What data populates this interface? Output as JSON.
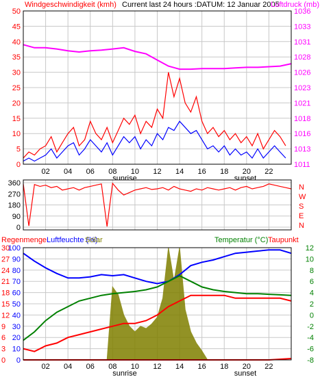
{
  "header": {
    "wind_label": "Windgeschwindigkeit (kmh)",
    "current_label": "Current last 24 hours :DATUM: 12 Januar 2005",
    "pressure_label": "Luftdruck (mb)"
  },
  "bottom_header": {
    "rain_label": "Regenmenge",
    "humidity_label": "Luftfeuchte (%)",
    "solar_label": "Solar",
    "temp_label": "Temperatur (°C)",
    "dew_label": "Taupunkt"
  },
  "x_ticks": [
    "02",
    "04",
    "06",
    "08",
    "10",
    "12",
    "14",
    "16",
    "18",
    "20",
    "22"
  ],
  "events": {
    "sunrise": "sunrise",
    "sunset": "sunset"
  },
  "colors": {
    "wind_speed": "#ff0000",
    "wind_avg": "#0000ff",
    "pressure": "#ff00ff",
    "direction": "#ff0000",
    "humidity": "#0000ff",
    "temperature": "#008000",
    "dewpoint": "#ff0000",
    "solar": "#808000",
    "rain": "#ff0000"
  },
  "chart_data": [
    {
      "type": "line",
      "name": "wind-pressure",
      "x_range": [
        0,
        24
      ],
      "y_left": {
        "min": 0,
        "max": 50,
        "ticks": [
          "0",
          "5",
          "10",
          "15",
          "20",
          "25",
          "30",
          "35",
          "40",
          "45",
          "50"
        ]
      },
      "y_right": {
        "min": 1011,
        "max": 1036,
        "ticks": [
          "1011",
          "1013",
          "1016",
          "1018",
          "1021",
          "1023",
          "1026",
          "1028",
          "1031",
          "1033",
          "1036"
        ]
      },
      "series": [
        {
          "name": "Windgeschwindigkeit (kmh)",
          "axis": "left",
          "color": "#ff0000",
          "x": [
            0,
            0.5,
            1,
            1.5,
            2,
            2.5,
            3,
            3.5,
            4,
            4.5,
            5,
            5.5,
            6,
            6.5,
            7,
            7.5,
            8,
            8.5,
            9,
            9.5,
            10,
            10.5,
            11,
            11.5,
            12,
            12.5,
            13,
            13.5,
            14,
            14.5,
            15,
            15.5,
            16,
            16.5,
            17,
            17.5,
            18,
            18.5,
            19,
            19.5,
            20,
            20.5,
            21,
            21.5,
            22,
            22.5,
            23,
            23.5
          ],
          "y": [
            2,
            4,
            3,
            5,
            6,
            9,
            4,
            7,
            10,
            12,
            6,
            8,
            14,
            10,
            8,
            12,
            7,
            11,
            15,
            13,
            16,
            10,
            14,
            12,
            18,
            15,
            30,
            22,
            28,
            20,
            17,
            22,
            14,
            10,
            12,
            9,
            11,
            8,
            10,
            7,
            9,
            6,
            10,
            5,
            8,
            11,
            9,
            6
          ]
        },
        {
          "name": "Wind Mittel",
          "axis": "left",
          "color": "#0000ff",
          "x": [
            0,
            0.5,
            1,
            1.5,
            2,
            2.5,
            3,
            3.5,
            4,
            4.5,
            5,
            5.5,
            6,
            6.5,
            7,
            7.5,
            8,
            8.5,
            9,
            9.5,
            10,
            10.5,
            11,
            11.5,
            12,
            12.5,
            13,
            13.5,
            14,
            14.5,
            15,
            15.5,
            16,
            16.5,
            17,
            17.5,
            18,
            18.5,
            19,
            19.5,
            20,
            20.5,
            21,
            21.5,
            22,
            22.5,
            23,
            23.5
          ],
          "y": [
            1,
            2,
            1,
            2,
            3,
            5,
            2,
            4,
            6,
            7,
            3,
            5,
            8,
            6,
            4,
            7,
            3,
            6,
            9,
            7,
            9,
            5,
            8,
            6,
            10,
            8,
            12,
            11,
            14,
            12,
            10,
            11,
            8,
            5,
            6,
            4,
            6,
            3,
            5,
            3,
            4,
            2,
            5,
            2,
            4,
            6,
            4,
            2
          ]
        },
        {
          "name": "Luftdruck (mb)",
          "axis": "right",
          "color": "#ff00ff",
          "x": [
            0,
            1,
            2,
            3,
            4,
            5,
            6,
            7,
            8,
            9,
            10,
            11,
            12,
            13,
            14,
            15,
            16,
            17,
            18,
            19,
            20,
            21,
            22,
            23,
            24
          ],
          "y": [
            1030.5,
            1030.0,
            1030.0,
            1029.8,
            1029.5,
            1029.3,
            1029.5,
            1029.6,
            1029.8,
            1030.0,
            1029.4,
            1029.0,
            1028.0,
            1027.0,
            1026.5,
            1026.5,
            1026.6,
            1026.6,
            1026.6,
            1026.7,
            1026.8,
            1026.8,
            1026.9,
            1027.0,
            1027.4
          ]
        }
      ]
    },
    {
      "type": "line",
      "name": "wind-direction",
      "x_range": [
        0,
        24
      ],
      "y_left": {
        "min": 0,
        "max": 360,
        "ticks": [
          "0",
          "90",
          "180",
          "270",
          "360"
        ]
      },
      "y_right_labels": [
        "N",
        "W",
        "S",
        "E",
        "N"
      ],
      "series": [
        {
          "name": "Windrichtung",
          "color": "#ff0000",
          "x": [
            0,
            0.5,
            1,
            1.5,
            2,
            2.5,
            3,
            3.5,
            4,
            4.5,
            5,
            5.5,
            6,
            6.5,
            7,
            7.5,
            8,
            8.5,
            9,
            9.5,
            10,
            10.5,
            11,
            11.5,
            12,
            12.5,
            13,
            13.5,
            14,
            14.5,
            15,
            15.5,
            16,
            16.5,
            17,
            17.5,
            18,
            18.5,
            19,
            19.5,
            20,
            20.5,
            21,
            21.5,
            22,
            22.5,
            23,
            23.5,
            24
          ],
          "y": [
            350,
            10,
            345,
            330,
            340,
            320,
            330,
            300,
            310,
            320,
            300,
            320,
            330,
            340,
            350,
            5,
            355,
            300,
            260,
            280,
            300,
            310,
            320,
            305,
            310,
            320,
            300,
            330,
            310,
            300,
            290,
            310,
            300,
            320,
            310,
            300,
            310,
            320,
            300,
            320,
            330,
            310,
            320,
            330,
            350,
            340,
            330,
            320,
            310
          ]
        }
      ]
    },
    {
      "type": "line",
      "name": "humidity-temperature",
      "x_range": [
        0,
        24
      ],
      "y_left_rain": {
        "ticks": [
          "0",
          "3",
          "6",
          "9",
          "12",
          "15",
          "18",
          "21",
          "24",
          "27",
          "30"
        ]
      },
      "y_left_humidity": {
        "min": 0,
        "max": 100,
        "ticks": [
          "0",
          "10",
          "20",
          "30",
          "40",
          "50",
          "60",
          "70",
          "80",
          "90",
          "100"
        ]
      },
      "y_right": {
        "min": -8,
        "max": 12,
        "ticks": [
          "-8",
          "-6",
          "-4",
          "-2",
          "0",
          "2",
          "4",
          "6",
          "8",
          "10",
          "12"
        ]
      },
      "series": [
        {
          "name": "Luftfeuchte (%)",
          "axis": "left",
          "color": "#0000ff",
          "x": [
            0,
            1,
            2,
            3,
            4,
            5,
            6,
            7,
            8,
            9,
            10,
            11,
            12,
            13,
            14,
            15,
            16,
            17,
            18,
            19,
            20,
            21,
            22,
            23,
            24
          ],
          "y": [
            95,
            88,
            82,
            77,
            73,
            73,
            74,
            76,
            75,
            76,
            73,
            70,
            68,
            70,
            76,
            84,
            87,
            89,
            92,
            95,
            96,
            97,
            98,
            98,
            95
          ]
        },
        {
          "name": "Temperatur (°C)",
          "axis": "right",
          "color": "#008000",
          "x": [
            0,
            1,
            2,
            3,
            4,
            5,
            6,
            7,
            8,
            9,
            10,
            11,
            12,
            13,
            14,
            15,
            16,
            17,
            18,
            19,
            20,
            21,
            22,
            23,
            24
          ],
          "y": [
            -4.5,
            -3,
            -1,
            0.5,
            1.5,
            2.5,
            3,
            3.5,
            3.8,
            4,
            4.2,
            4.5,
            5,
            6,
            7,
            6,
            5,
            4.5,
            4.2,
            4,
            3.8,
            3.8,
            3.7,
            3.6,
            3.5
          ]
        },
        {
          "name": "Taupunkt",
          "axis": "right",
          "color": "#ff0000",
          "x": [
            0,
            1,
            2,
            3,
            4,
            5,
            6,
            7,
            8,
            9,
            10,
            11,
            12,
            13,
            14,
            15,
            16,
            17,
            18,
            19,
            20,
            21,
            22,
            23,
            24
          ],
          "y": [
            -6,
            -6.5,
            -5.5,
            -5,
            -4,
            -3.5,
            -3,
            -2.5,
            -2,
            -1.5,
            -1.5,
            -1,
            0,
            1.5,
            2.5,
            3.5,
            3.5,
            3.5,
            3.5,
            3,
            3,
            3,
            3,
            3,
            2.5
          ]
        },
        {
          "name": "Solar",
          "axis": "left",
          "color": "#808000",
          "x": [
            7.5,
            8,
            8.5,
            9,
            9.5,
            10,
            10.5,
            11,
            11.5,
            12,
            12.5,
            13,
            13.5,
            14,
            14.5,
            15,
            15.5,
            16,
            16.5
          ],
          "y": [
            0,
            65,
            58,
            40,
            30,
            25,
            30,
            28,
            32,
            38,
            55,
            100,
            70,
            100,
            45,
            25,
            15,
            8,
            0
          ]
        },
        {
          "name": "Regenmenge",
          "axis": "left",
          "color": "#ff0000",
          "x": [
            0,
            22,
            22.5,
            23,
            23.5,
            24
          ],
          "y": [
            0,
            0,
            0.3,
            0.6,
            0.9,
            1.2
          ]
        }
      ]
    }
  ]
}
